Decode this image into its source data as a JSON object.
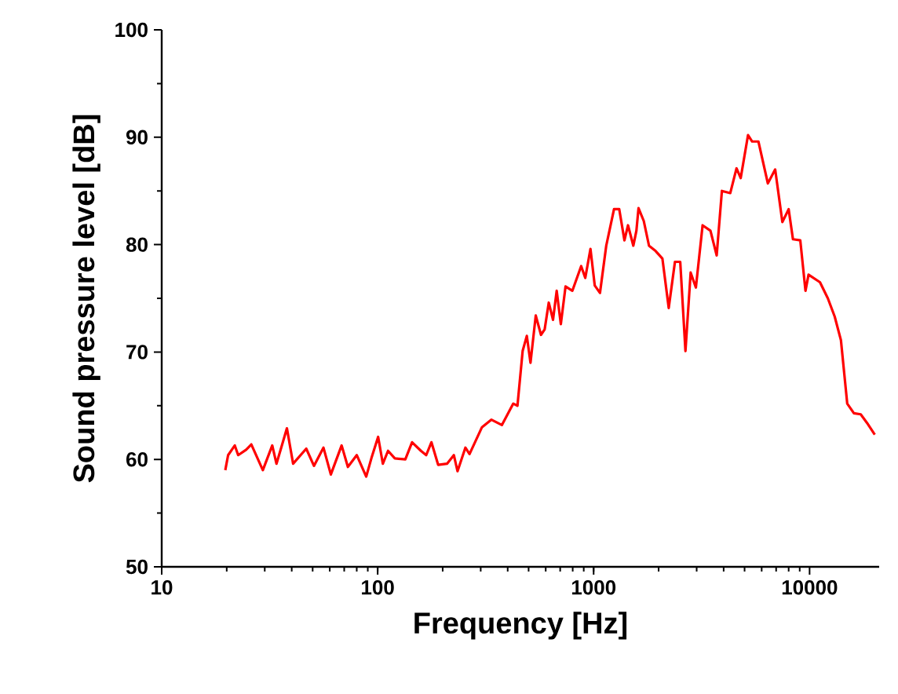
{
  "chart_data": {
    "type": "line",
    "xlabel": "Frequency [Hz]",
    "ylabel": "Sound pressure level [dB]",
    "log": "x",
    "xlim": [
      10,
      21000
    ],
    "ylim": [
      50,
      100
    ],
    "xticks": [
      10,
      100,
      1000,
      10000
    ],
    "yticks": [
      50,
      60,
      70,
      80,
      90,
      100
    ],
    "series": [
      {
        "color": "#ff0000",
        "x": [
          19.7,
          20.3,
          21.8,
          22.6,
          24.6,
          26.0,
          29.4,
          32.5,
          34.0,
          35.9,
          38.0,
          40.6,
          46.7,
          50.7,
          56.1,
          60.7,
          68.1,
          72.8,
          80.0,
          88.5,
          93.5,
          100.5,
          105.7,
          111.7,
          120.1,
          134.3,
          144.3,
          158.6,
          167.8,
          177.4,
          190.6,
          209.5,
          225.3,
          234.3,
          254.8,
          266.3,
          304.1,
          336.4,
          375.9,
          424.6,
          443.9,
          469.2,
          490.5,
          510.1,
          539.6,
          570.5,
          593.2,
          619.8,
          648.6,
          674.5,
          705.0,
          741.3,
          796.9,
          875.6,
          914.8,
          967.0,
          1012,
          1070,
          1144,
          1243,
          1314,
          1389,
          1443,
          1527,
          1578,
          1614,
          1707,
          1805,
          1938,
          2082,
          2227,
          2380,
          2518,
          2662,
          2814,
          2975,
          3196,
          3475,
          3714,
          3927,
          4293,
          4589,
          4799,
          5188,
          5423,
          5797,
          6409,
          6930,
          7482,
          8000,
          8375,
          9055,
          9572,
          9889,
          11170,
          12150,
          13070,
          13970,
          14940,
          16040,
          17250,
          18450,
          20040
        ],
        "values": [
          59.0,
          60.4,
          61.3,
          60.4,
          60.9,
          61.4,
          59.0,
          61.3,
          59.6,
          61.2,
          62.9,
          59.6,
          61.0,
          59.4,
          61.1,
          58.6,
          61.3,
          59.3,
          60.4,
          58.4,
          60.1,
          62.1,
          59.6,
          60.8,
          60.1,
          60.0,
          61.6,
          60.8,
          60.4,
          61.6,
          59.5,
          59.6,
          60.4,
          58.9,
          61.1,
          60.5,
          63.0,
          63.7,
          63.2,
          65.2,
          65.0,
          70.1,
          71.5,
          69.0,
          73.4,
          71.6,
          72.1,
          74.6,
          73.0,
          75.7,
          72.6,
          76.1,
          75.7,
          78.0,
          76.9,
          79.6,
          76.2,
          75.5,
          79.9,
          83.3,
          83.3,
          80.4,
          81.8,
          79.9,
          81.3,
          83.4,
          82.2,
          79.9,
          79.4,
          78.7,
          74.1,
          78.4,
          78.4,
          70.1,
          77.4,
          76.0,
          81.8,
          81.3,
          79.0,
          85.0,
          84.8,
          87.1,
          86.2,
          90.2,
          89.6,
          89.6,
          85.7,
          87.0,
          82.1,
          83.3,
          80.5,
          80.4,
          75.7,
          77.2,
          76.5,
          75.0,
          73.3,
          71.1,
          65.2,
          64.3,
          64.2,
          63.4,
          62.3
        ]
      }
    ]
  }
}
